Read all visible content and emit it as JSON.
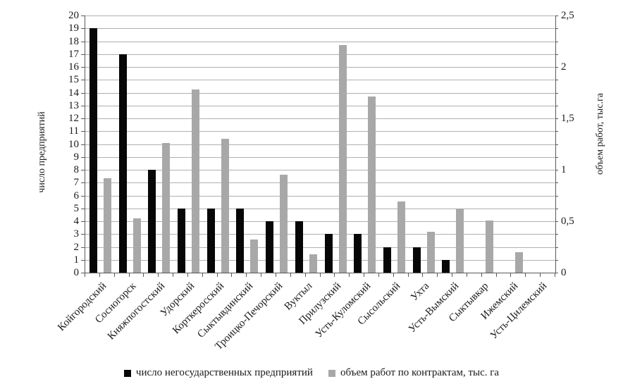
{
  "chart_data": {
    "type": "bar",
    "title": "",
    "categories": [
      "Койгородский",
      "Сосногорск",
      "Княжпогостский",
      "Удорский",
      "Корткеросский",
      "Сыктывдинский",
      "Троицко-Печорский",
      "Вуктыл",
      "Прилузский",
      "Усть-Куломский",
      "Сысольский",
      "Ухта",
      "Усть-Вымский",
      "Сыктывкар",
      "Ижемский",
      "Усть-Цилемский"
    ],
    "series": [
      {
        "name": "число негосударственных предприятий",
        "axis": "left",
        "color": "#070707",
        "values": [
          19,
          17,
          8,
          5,
          5,
          5,
          4,
          4,
          3,
          3,
          2,
          2,
          1,
          0,
          0,
          0
        ]
      },
      {
        "name": "объем работ по контрактам, тыс. га",
        "axis": "right",
        "color": "#a8a8a8",
        "values": [
          0.92,
          0.53,
          1.26,
          1.78,
          1.3,
          0.32,
          0.95,
          0.18,
          2.21,
          1.71,
          0.69,
          0.4,
          0.62,
          0.51,
          0.2,
          0
        ]
      }
    ],
    "left_axis": {
      "title": "число предприятий",
      "min": 0,
      "max": 20,
      "step": 1,
      "tick_labels": [
        "0",
        "1",
        "2",
        "3",
        "4",
        "5",
        "6",
        "7",
        "8",
        "9",
        "10",
        "11",
        "12",
        "13",
        "14",
        "15",
        "16",
        "17",
        "18",
        "19",
        "20"
      ]
    },
    "right_axis": {
      "title": "объем работ, тыс.га",
      "min": 0,
      "max": 2.5,
      "step": 0.5,
      "tick_labels": [
        "0",
        "0,5",
        "1",
        "1,5",
        "2",
        "2,5"
      ]
    },
    "grid": true,
    "grid_color": "#b0b0b0",
    "axis_color": "#595959",
    "legend_position": "bottom"
  }
}
